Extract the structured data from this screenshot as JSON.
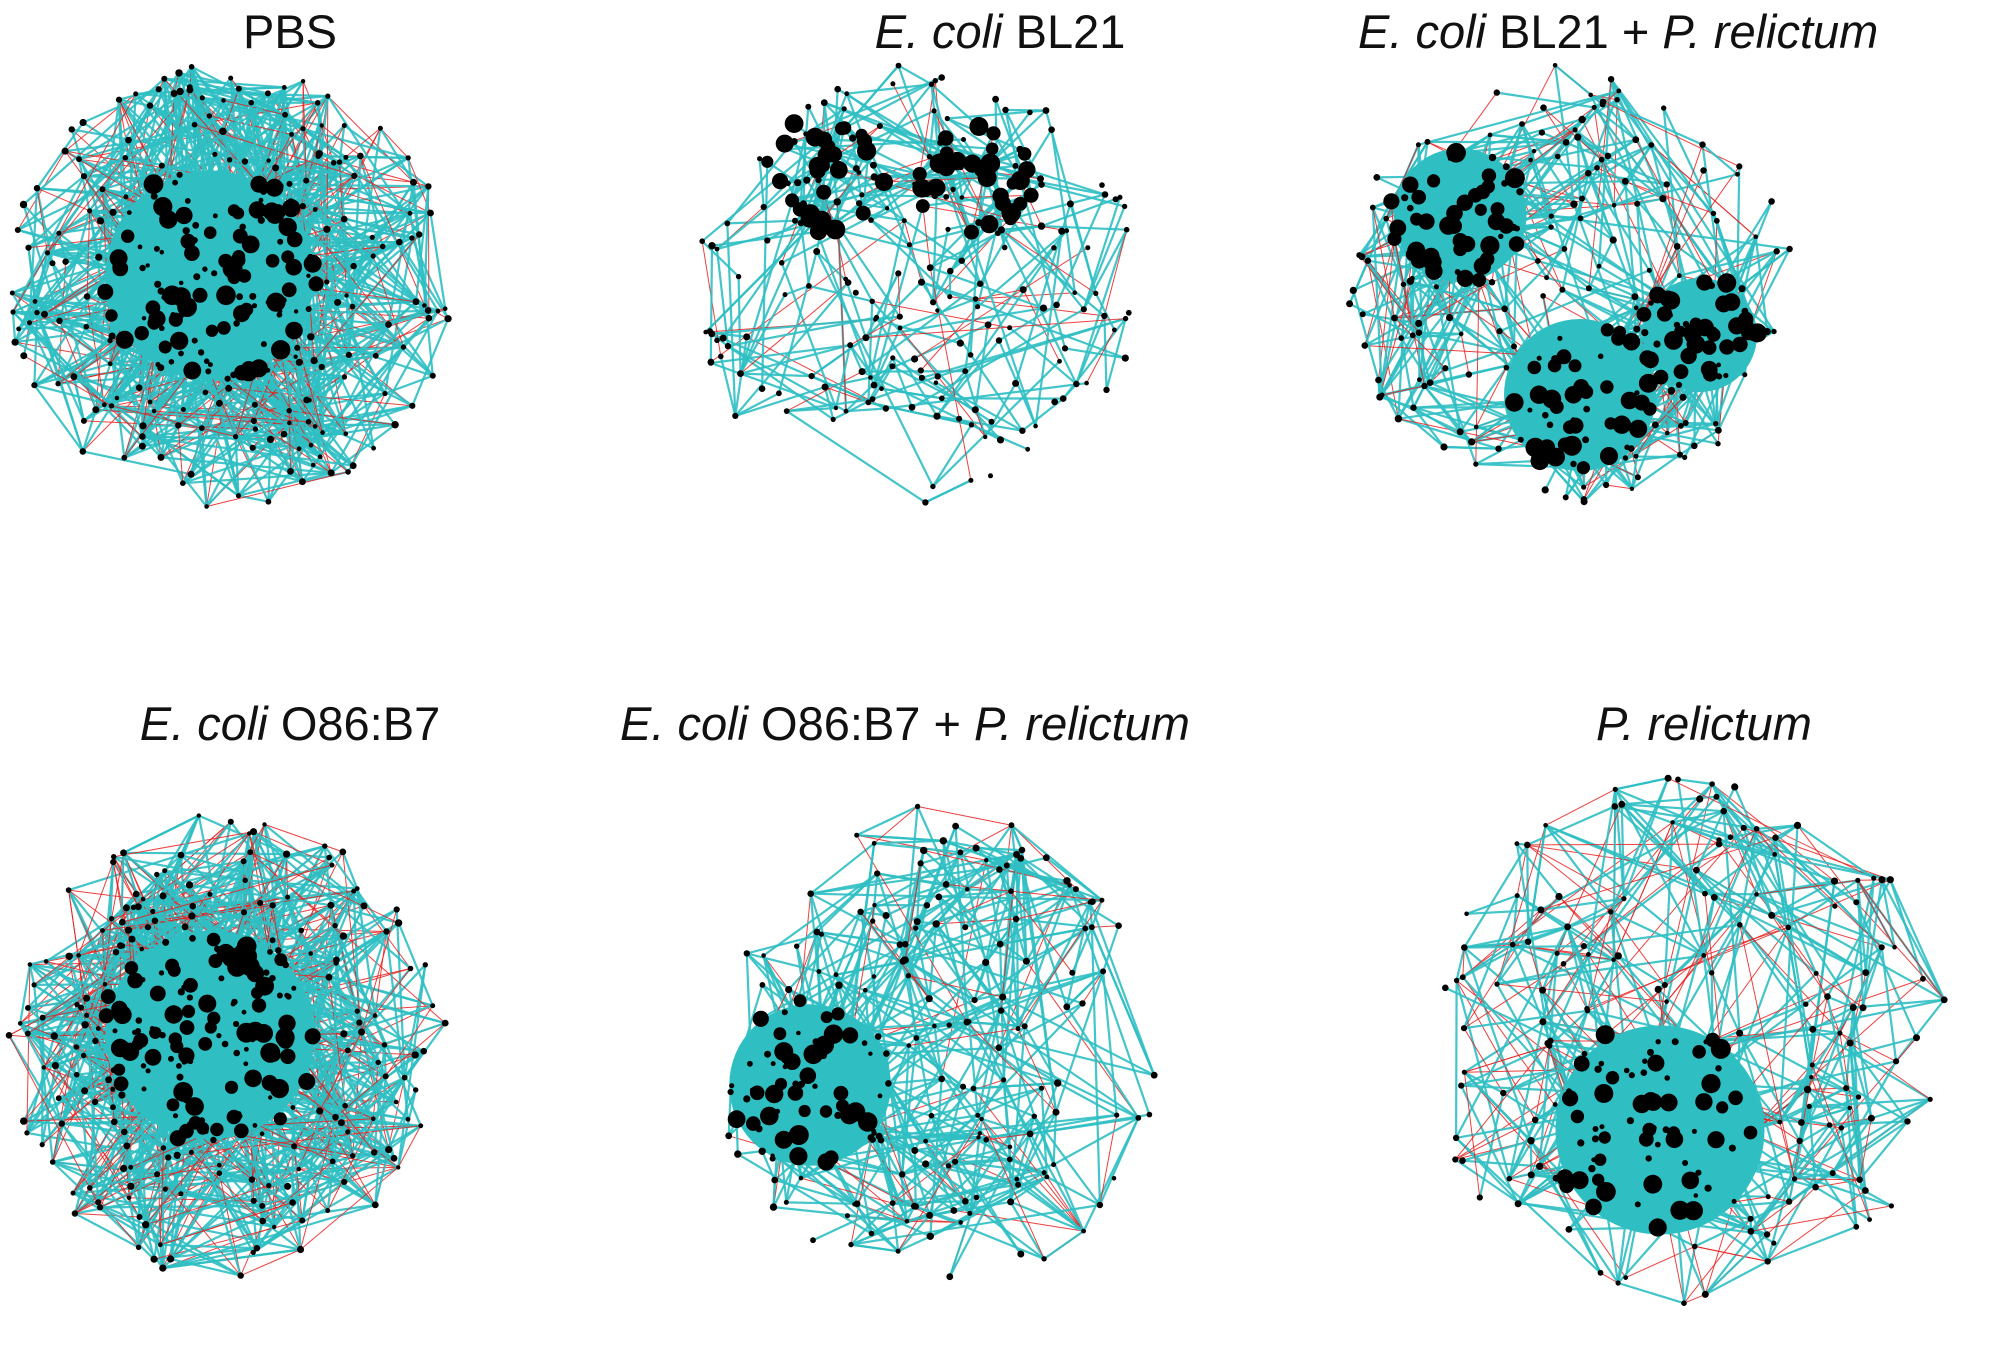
{
  "figure": {
    "colors": {
      "positive_edge": "#2fbfc3",
      "negative_edge": "#e8201f",
      "node": "#000000"
    },
    "panels": [
      {
        "id": "pbs",
        "title": [
          {
            "text": "PBS",
            "italic": false
          }
        ],
        "layout": "ball",
        "density": 1.0,
        "red": 0.22
      },
      {
        "id": "bl21",
        "title": [
          {
            "text": "E. coli",
            "italic": true
          },
          {
            "text": " BL21",
            "italic": false
          }
        ],
        "layout": "sparse",
        "density": 0.25,
        "red": 0.12
      },
      {
        "id": "bl21-prel",
        "title": [
          {
            "text": "E. coli",
            "italic": true
          },
          {
            "text": " BL21 + ",
            "italic": false
          },
          {
            "text": "P. relictum",
            "italic": true
          }
        ],
        "layout": "clusters",
        "density": 0.55,
        "red": 0.25
      },
      {
        "id": "o86",
        "title": [
          {
            "text": "E. coli",
            "italic": true
          },
          {
            "text": " O86:B7",
            "italic": false
          }
        ],
        "layout": "ball",
        "density": 1.0,
        "red": 0.3
      },
      {
        "id": "o86-prel",
        "title": [
          {
            "text": "E. coli",
            "italic": true
          },
          {
            "text": " O86:B7 + ",
            "italic": false
          },
          {
            "text": "P. relictum",
            "italic": true
          }
        ],
        "layout": "left-cluster",
        "density": 0.45,
        "red": 0.12
      },
      {
        "id": "prel",
        "title": [
          {
            "text": "P. relictum",
            "italic": false,
            "italic_override": true
          }
        ],
        "layout": "bottom-cluster",
        "density": 0.45,
        "red": 0.28
      }
    ]
  }
}
